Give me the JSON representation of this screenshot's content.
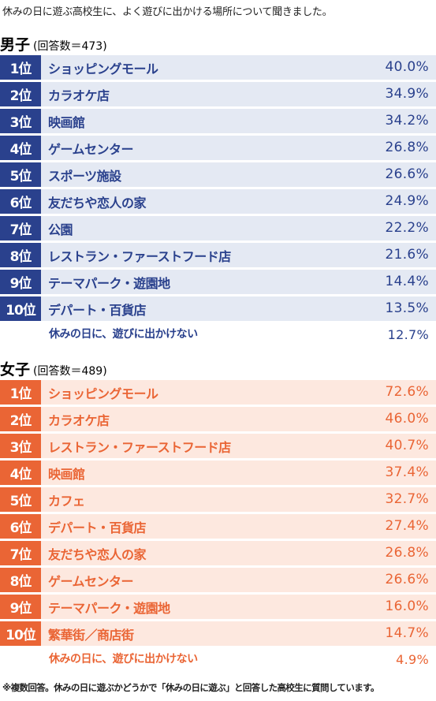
{
  "intro": "休みの日に遊ぶ高校生に、よく遊びに出かける場所について聞きました。",
  "colors": {
    "male_accent": "#2a418d",
    "male_row": "#e4e9f3",
    "female_accent": "#ea6535",
    "female_row": "#fde8df"
  },
  "footnote": "※複数回答。休みの日に遊ぶかどうかで「休みの日に遊ぶ」と回答した高校生に質問しています。",
  "chart_data": [
    {
      "type": "table",
      "title": "男子",
      "subtitle": "(回答数＝473)",
      "rows": [
        {
          "rank": "1位",
          "name": "ショッピングモール",
          "value": "40.0%"
        },
        {
          "rank": "2位",
          "name": "カラオケ店",
          "value": "34.9%"
        },
        {
          "rank": "3位",
          "name": "映画館",
          "value": "34.2%"
        },
        {
          "rank": "4位",
          "name": "ゲームセンター",
          "value": "26.8%"
        },
        {
          "rank": "5位",
          "name": "スポーツ施設",
          "value": "26.6%"
        },
        {
          "rank": "6位",
          "name": "友だちや恋人の家",
          "value": "24.9%"
        },
        {
          "rank": "7位",
          "name": "公園",
          "value": "22.2%"
        },
        {
          "rank": "8位",
          "name": "レストラン・ファーストフード店",
          "value": "21.6%"
        },
        {
          "rank": "9位",
          "name": "テーマパーク・遊園地",
          "value": "14.4%"
        },
        {
          "rank": "10位",
          "name": "デパート・百貨店",
          "value": "13.5%"
        }
      ],
      "extra": {
        "name": "休みの日に、遊びに出かけない",
        "value": "12.7%"
      }
    },
    {
      "type": "table",
      "title": "女子",
      "subtitle": "(回答数＝489)",
      "rows": [
        {
          "rank": "1位",
          "name": "ショッピングモール",
          "value": "72.6%"
        },
        {
          "rank": "2位",
          "name": "カラオケ店",
          "value": "46.0%"
        },
        {
          "rank": "3位",
          "name": "レストラン・ファーストフード店",
          "value": "40.7%"
        },
        {
          "rank": "4位",
          "name": "映画館",
          "value": "37.4%"
        },
        {
          "rank": "5位",
          "name": "カフェ",
          "value": "32.7%"
        },
        {
          "rank": "6位",
          "name": "デパート・百貨店",
          "value": "27.4%"
        },
        {
          "rank": "7位",
          "name": "友だちや恋人の家",
          "value": "26.8%"
        },
        {
          "rank": "8位",
          "name": "ゲームセンター",
          "value": "26.6%"
        },
        {
          "rank": "9位",
          "name": "テーマパーク・遊園地",
          "value": "16.0%"
        },
        {
          "rank": "10位",
          "name": "繁華街／商店街",
          "value": "14.7%"
        }
      ],
      "extra": {
        "name": "休みの日に、遊びに出かけない",
        "value": "4.9%"
      }
    }
  ]
}
